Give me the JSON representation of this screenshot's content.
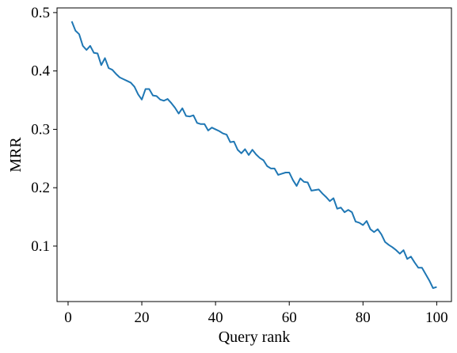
{
  "chart_data": {
    "type": "line",
    "xlabel": "Query rank",
    "ylabel": "MRR",
    "xlim": [
      -3,
      104
    ],
    "ylim": [
      0.005,
      0.508
    ],
    "xticks": [
      0,
      20,
      40,
      60,
      80,
      100
    ],
    "xtick_labels": [
      "0",
      "20",
      "40",
      "60",
      "80",
      "100"
    ],
    "yticks": [
      0.1,
      0.2,
      0.3,
      0.4,
      0.5
    ],
    "ytick_labels": [
      "0.1",
      "0.2",
      "0.3",
      "0.4",
      "0.5"
    ],
    "grid": false,
    "line_color": "#1f77b4",
    "series": [
      {
        "x": [
          1,
          2,
          3,
          4,
          5,
          6,
          7,
          8,
          9,
          10,
          11,
          12,
          13,
          14,
          15,
          16,
          17,
          18,
          19,
          20,
          21,
          22,
          23,
          24,
          25,
          26,
          27,
          28,
          29,
          30,
          31,
          32,
          33,
          34,
          35,
          36,
          37,
          38,
          39,
          40,
          41,
          42,
          43,
          44,
          45,
          46,
          47,
          48,
          49,
          50,
          51,
          52,
          53,
          54,
          55,
          56,
          57,
          58,
          59,
          60,
          61,
          62,
          63,
          64,
          65,
          66,
          67,
          68,
          69,
          70,
          71,
          72,
          73,
          74,
          75,
          76,
          77,
          78,
          79,
          80,
          81,
          82,
          83,
          84,
          85,
          86,
          87,
          88,
          89,
          90,
          91,
          92,
          93,
          94,
          95,
          96,
          97,
          98,
          99,
          100
        ],
        "y": [
          0.485,
          0.469,
          0.463,
          0.443,
          0.436,
          0.443,
          0.431,
          0.43,
          0.41,
          0.422,
          0.405,
          0.402,
          0.395,
          0.389,
          0.386,
          0.383,
          0.38,
          0.373,
          0.36,
          0.351,
          0.369,
          0.369,
          0.358,
          0.357,
          0.351,
          0.349,
          0.352,
          0.345,
          0.337,
          0.327,
          0.336,
          0.323,
          0.322,
          0.324,
          0.311,
          0.309,
          0.309,
          0.298,
          0.303,
          0.3,
          0.297,
          0.293,
          0.291,
          0.278,
          0.279,
          0.265,
          0.259,
          0.266,
          0.256,
          0.265,
          0.257,
          0.251,
          0.247,
          0.237,
          0.233,
          0.233,
          0.222,
          0.224,
          0.226,
          0.226,
          0.213,
          0.203,
          0.216,
          0.21,
          0.209,
          0.195,
          0.196,
          0.197,
          0.19,
          0.184,
          0.177,
          0.182,
          0.164,
          0.166,
          0.158,
          0.162,
          0.158,
          0.142,
          0.14,
          0.136,
          0.143,
          0.129,
          0.124,
          0.129,
          0.12,
          0.107,
          0.102,
          0.098,
          0.093,
          0.087,
          0.093,
          0.078,
          0.082,
          0.072,
          0.063,
          0.063,
          0.052,
          0.041,
          0.028,
          0.03
        ]
      }
    ]
  }
}
